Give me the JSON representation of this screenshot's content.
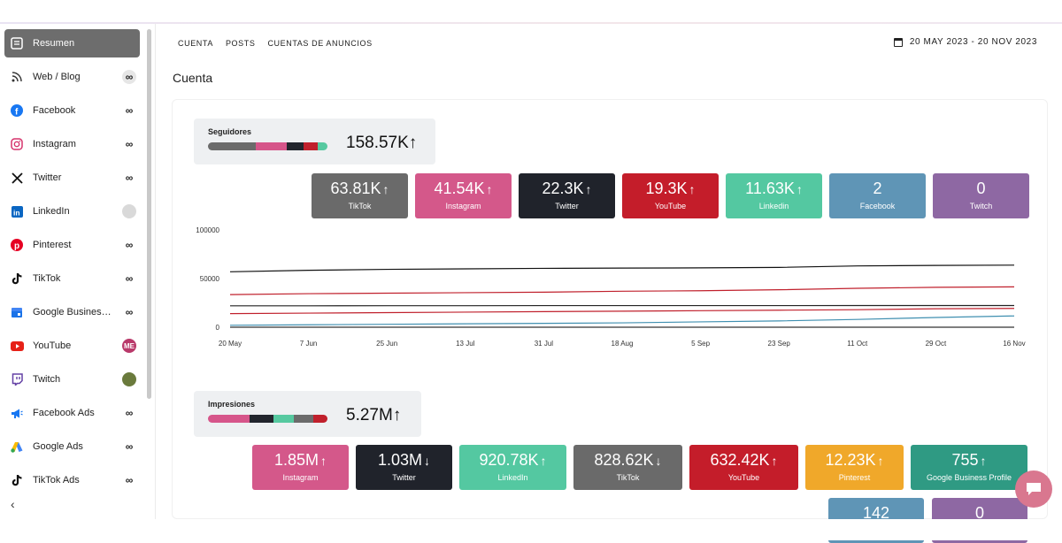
{
  "sidebar": {
    "items": [
      {
        "label": "Resumen",
        "icon": "summary-icon",
        "active": true,
        "badge": ""
      },
      {
        "label": "Web / Blog",
        "icon": "rss-icon",
        "badge": "∞"
      },
      {
        "label": "Facebook",
        "icon": "facebook-icon",
        "badge": "∞"
      },
      {
        "label": "Instagram",
        "icon": "instagram-icon",
        "badge": "∞"
      },
      {
        "label": "Twitter",
        "icon": "x-icon",
        "badge": "∞"
      },
      {
        "label": "LinkedIn",
        "icon": "linkedin-icon",
        "badge": ""
      },
      {
        "label": "Pinterest",
        "icon": "pinterest-icon",
        "badge": "∞"
      },
      {
        "label": "TikTok",
        "icon": "tiktok-icon",
        "badge": "∞"
      },
      {
        "label": "Google Busines…",
        "icon": "google-business-icon",
        "badge": "∞"
      },
      {
        "label": "YouTube",
        "icon": "youtube-icon",
        "badge": "ME"
      },
      {
        "label": "Twitch",
        "icon": "twitch-icon",
        "badge": ""
      },
      {
        "label": "Facebook Ads",
        "icon": "megaphone-icon",
        "badge": "∞"
      },
      {
        "label": "Google Ads",
        "icon": "google-ads-icon",
        "badge": "∞"
      },
      {
        "label": "TikTok Ads",
        "icon": "tiktok-icon",
        "badge": "∞"
      }
    ],
    "collapse_label": "‹"
  },
  "header": {
    "tabs": [
      "CUENTA",
      "POSTS",
      "CUENTAS DE ANUNCIOS"
    ],
    "date_range": "20 MAY 2023 - 20 NOV 2023"
  },
  "section_title": "Cuenta",
  "followers": {
    "title": "Seguidores",
    "total": "158.57K",
    "trend": "↑",
    "bar_segments": [
      {
        "color": "#6b6b6b",
        "share": 0.4
      },
      {
        "color": "#d6558a",
        "share": 0.26
      },
      {
        "color": "#22252d",
        "share": 0.14
      },
      {
        "color": "#c0202c",
        "share": 0.12
      },
      {
        "color": "#56c9a0",
        "share": 0.08
      }
    ],
    "tiles": [
      {
        "value": "63.81K",
        "trend": "↑",
        "label": "TikTok",
        "color": "#6a6a6a"
      },
      {
        "value": "41.54K",
        "trend": "↑",
        "label": "Instagram",
        "color": "#d4588a"
      },
      {
        "value": "22.3K",
        "trend": "↑",
        "label": "Twitter",
        "color": "#20232b"
      },
      {
        "value": "19.3K",
        "trend": "↑",
        "label": "YouTube",
        "color": "#c41d2a"
      },
      {
        "value": "11.63K",
        "trend": "↑",
        "label": "Linkedin",
        "color": "#54c8a1"
      },
      {
        "value": "2",
        "trend": "",
        "label": "Facebook",
        "color": "#5f95b6"
      },
      {
        "value": "0",
        "trend": "",
        "label": "Twitch",
        "color": "#8e68a3"
      }
    ]
  },
  "chart_data": {
    "type": "line",
    "x": [
      "20 May",
      "7 Jun",
      "25 Jun",
      "13 Jul",
      "31 Jul",
      "18 Aug",
      "5 Sep",
      "23 Sep",
      "11 Oct",
      "29 Oct",
      "16 Nov"
    ],
    "yticks": [
      "100000",
      "50000",
      "0"
    ],
    "ylim": [
      0,
      100000
    ],
    "grid": false,
    "series": [
      {
        "color": "#111111",
        "values": [
          57000,
          58500,
          59500,
          60000,
          60500,
          60800,
          61000,
          61500,
          63000,
          63500,
          63800
        ]
      },
      {
        "color": "#c0202c",
        "values": [
          33500,
          34500,
          35000,
          35500,
          36000,
          37000,
          37500,
          38500,
          40000,
          41000,
          41500
        ]
      },
      {
        "color": "#222222",
        "values": [
          22000,
          22000,
          22100,
          22100,
          22200,
          22200,
          22200,
          22200,
          22300,
          22300,
          22300
        ]
      },
      {
        "color": "#c0202c",
        "values": [
          14000,
          14500,
          15000,
          15500,
          16000,
          16500,
          17000,
          17500,
          18000,
          19000,
          19300
        ]
      },
      {
        "color": "#3f8fb0",
        "values": [
          2000,
          2500,
          3000,
          3500,
          4000,
          4500,
          5500,
          6500,
          8000,
          10000,
          11600
        ]
      },
      {
        "color": "#333333",
        "values": [
          0,
          0,
          0,
          0,
          0,
          0,
          0,
          0,
          0,
          0,
          0
        ]
      }
    ]
  },
  "impressions": {
    "title": "Impresiones",
    "total": "5.27M",
    "trend": "↑",
    "bar_segments": [
      {
        "color": "#d6558a",
        "share": 0.35
      },
      {
        "color": "#22252d",
        "share": 0.2
      },
      {
        "color": "#56c9a0",
        "share": 0.17
      },
      {
        "color": "#6b6b6b",
        "share": 0.16
      },
      {
        "color": "#c0202c",
        "share": 0.12
      }
    ],
    "tiles": [
      {
        "value": "1.85M",
        "trend": "↑",
        "label": "Instagram",
        "color": "#d4588a"
      },
      {
        "value": "1.03M",
        "trend": "↓",
        "label": "Twitter",
        "color": "#20232b"
      },
      {
        "value": "920.78K",
        "trend": "↑",
        "label": "LinkedIn",
        "color": "#54c8a1"
      },
      {
        "value": "828.62K",
        "trend": "↓",
        "label": "TikTok",
        "color": "#6a6a6a"
      },
      {
        "value": "632.42K",
        "trend": "↑",
        "label": "YouTube",
        "color": "#c41d2a"
      },
      {
        "value": "12.23K",
        "trend": "↑",
        "label": "Pinterest",
        "color": "#f0a82a"
      },
      {
        "value": "755",
        "trend": "↑",
        "label": "Google Business Profile",
        "color": "#2f9a83"
      }
    ],
    "tiles_row2": [
      {
        "value": "142",
        "label": "",
        "color": "#5f95b6"
      },
      {
        "value": "0",
        "label": "",
        "color": "#8e68a3"
      }
    ]
  }
}
